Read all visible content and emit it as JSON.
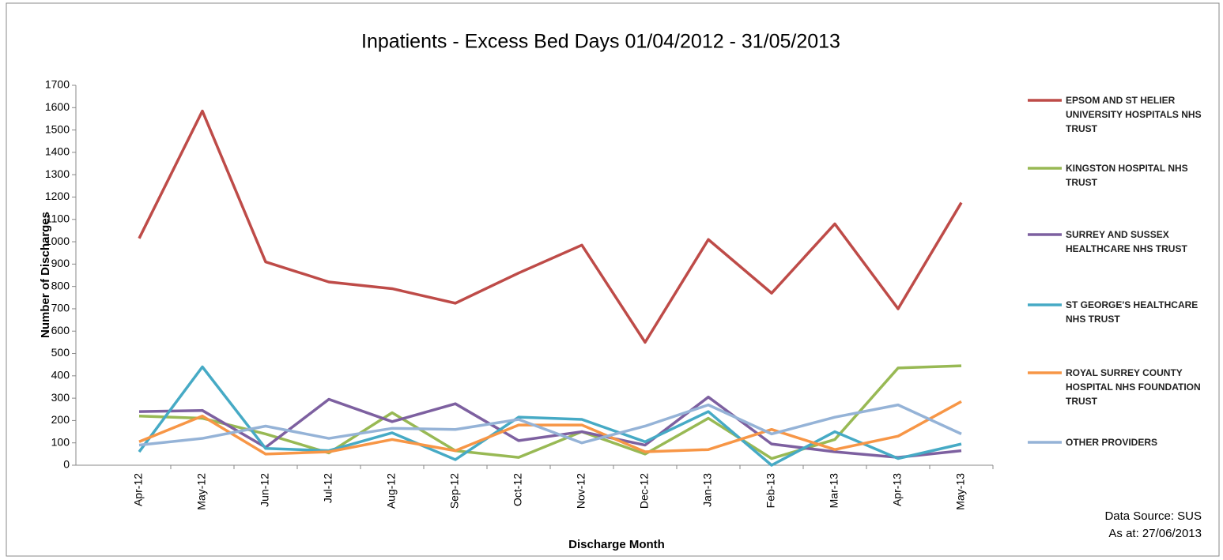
{
  "chart_data": {
    "type": "line",
    "title": "Inpatients - Excess Bed Days 01/04/2012 - 31/05/2013",
    "x_label": "Discharge Month",
    "y_label": "Number of Discharges",
    "categories": [
      "Apr-12",
      "May-12",
      "Jun-12",
      "Jul-12",
      "Aug-12",
      "Sep-12",
      "Oct-12",
      "Nov-12",
      "Dec-12",
      "Jan-13",
      "Feb-13",
      "Mar-13",
      "Apr-13",
      "May-13"
    ],
    "ylim": [
      0,
      1700
    ],
    "yticks": [
      0,
      100,
      200,
      300,
      400,
      500,
      600,
      700,
      800,
      900,
      1000,
      1100,
      1200,
      1300,
      1400,
      1500,
      1600,
      1700
    ],
    "grid": false,
    "legend": "right",
    "series": [
      {
        "name": "EPSOM AND ST HELIER UNIVERSITY HOSPITALS NHS TRUST",
        "color": "#be4b48",
        "values": [
          1015,
          1585,
          910,
          820,
          790,
          725,
          860,
          985,
          550,
          1010,
          770,
          1080,
          700,
          1175
        ]
      },
      {
        "name": "KINGSTON HOSPITAL NHS TRUST",
        "color": "#98b954",
        "values": [
          220,
          210,
          140,
          55,
          235,
          65,
          35,
          150,
          50,
          210,
          30,
          115,
          435,
          445
        ]
      },
      {
        "name": "SURREY AND SUSSEX HEALTHCARE NHS TRUST",
        "color": "#7d60a0",
        "values": [
          240,
          245,
          80,
          295,
          195,
          275,
          110,
          150,
          90,
          305,
          95,
          60,
          35,
          65
        ]
      },
      {
        "name": "ST GEORGE'S HEALTHCARE NHS TRUST",
        "color": "#46aac5",
        "values": [
          60,
          440,
          75,
          65,
          145,
          25,
          215,
          205,
          105,
          240,
          0,
          150,
          30,
          95
        ]
      },
      {
        "name": "ROYAL SURREY COUNTY HOSPITAL NHS FOUNDATION TRUST",
        "color": "#f79646",
        "values": [
          105,
          220,
          50,
          60,
          115,
          65,
          180,
          180,
          60,
          70,
          160,
          70,
          130,
          285
        ]
      },
      {
        "name": "OTHER PROVIDERS",
        "color": "#95b3d7",
        "values": [
          90,
          120,
          175,
          120,
          165,
          160,
          205,
          100,
          175,
          270,
          140,
          215,
          270,
          140
        ]
      }
    ],
    "annotations": [
      "Data Source: SUS",
      "As at: 27/06/2013"
    ]
  }
}
